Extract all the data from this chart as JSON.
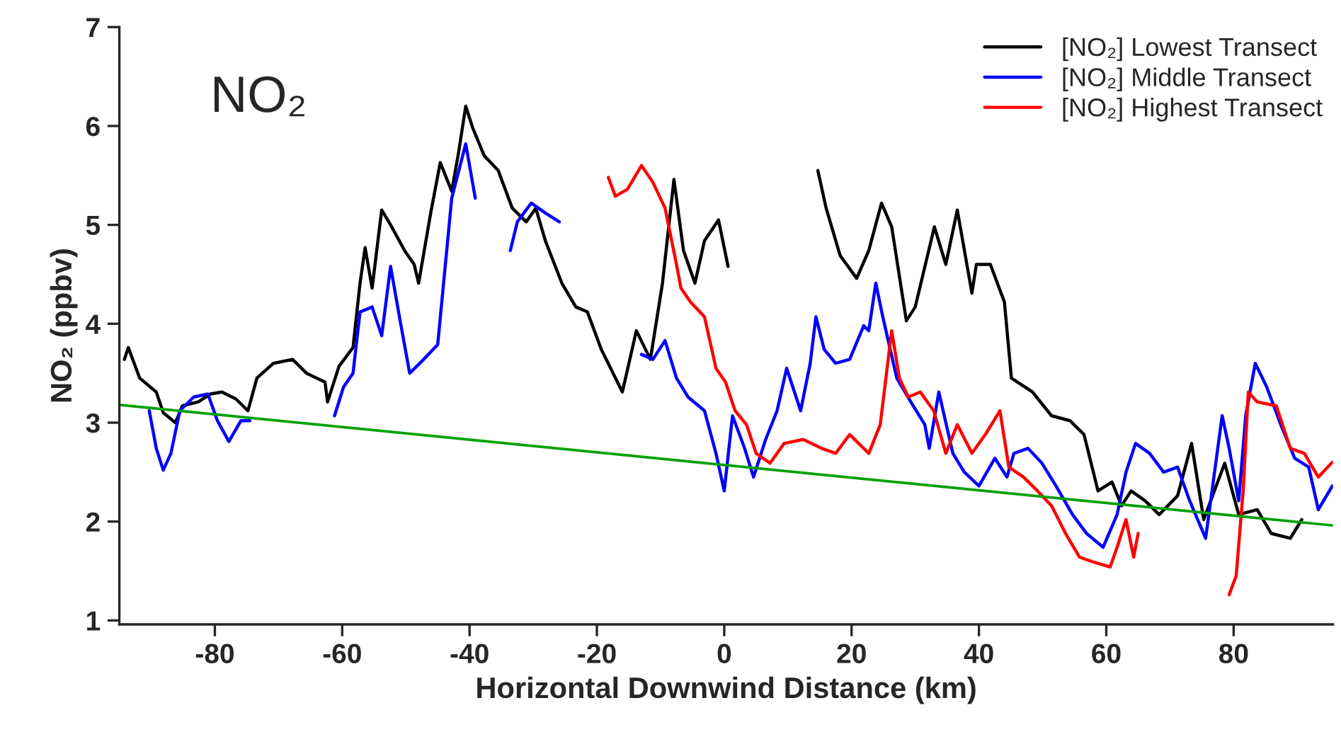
{
  "chart_data": {
    "type": "line",
    "title": "NO₂",
    "xlabel": "Horizontal Downwind Distance (km)",
    "ylabel": "NO₂ (ppbv)",
    "xlim": [
      -95,
      95.6
    ],
    "ylim": [
      0.96,
      7
    ],
    "xticks": [
      -80,
      -60,
      -40,
      -20,
      0,
      20,
      40,
      60,
      80
    ],
    "yticks": [
      1,
      2,
      3,
      4,
      5,
      6,
      7
    ],
    "grid": false,
    "legend": "top right",
    "marker": "none",
    "line_style": "solid",
    "series": [
      {
        "name": "[NO₂] Lowest Transect",
        "color": "#000000",
        "x": [
          -94.2,
          -93.6,
          -91.8,
          -89.2,
          -88.1,
          -86.2,
          -85.1,
          -82.6,
          -80.7,
          -78.9,
          -76.7,
          -74.8,
          -73.4,
          -70.8,
          -67.8,
          -65.6,
          -62.7,
          -62.3,
          -60.5,
          -58.3,
          -57.2,
          -56.4,
          -55.3,
          -53.8,
          -52.4,
          -50.2,
          -48.7,
          -48.0,
          -46.1,
          -44.6,
          -42.8,
          -41.7,
          -40.6,
          -39.5,
          -37.7,
          -35.5,
          -33.3,
          -31.1,
          -29.6,
          -28.1,
          -25.5,
          -23.3,
          -21.5,
          -19.3,
          -16.0,
          -13.8,
          -11.6,
          -9.7,
          -7.9,
          -6.4,
          -4.6,
          -3.1,
          -0.9,
          0.6,
          7,
          14.7,
          16.0,
          18.2,
          20.8,
          22.7,
          24.7,
          26.3,
          28.6,
          30.0,
          33.0,
          34.8,
          36.6,
          38.9,
          39.6,
          41.8,
          44.0,
          45.1,
          48.4,
          51.4,
          54.3,
          56.5,
          58.7,
          60.9,
          62.4,
          63.9,
          66.1,
          68.3,
          71.2,
          73.4,
          75.3,
          78.6,
          80.8,
          83.7,
          85.9,
          88.9,
          90.7
        ],
        "values": [
          3.64,
          3.76,
          3.45,
          3.31,
          3.1,
          3.0,
          3.17,
          3.21,
          3.29,
          3.31,
          3.24,
          3.12,
          3.45,
          3.6,
          3.64,
          3.5,
          3.41,
          3.21,
          3.57,
          3.76,
          4.41,
          4.77,
          4.36,
          5.15,
          5.0,
          4.74,
          4.6,
          4.41,
          5.12,
          5.63,
          5.34,
          5.74,
          6.2,
          5.98,
          5.7,
          5.55,
          5.17,
          5.03,
          5.17,
          4.84,
          4.41,
          4.17,
          4.12,
          3.74,
          3.31,
          3.93,
          3.64,
          4.41,
          5.46,
          4.74,
          4.41,
          4.84,
          5.05,
          4.58,
          null,
          5.55,
          5.17,
          4.69,
          4.46,
          4.74,
          5.22,
          4.98,
          4.03,
          4.17,
          4.98,
          4.6,
          5.15,
          4.31,
          4.6,
          4.6,
          4.22,
          3.45,
          3.31,
          3.07,
          3.02,
          2.88,
          2.31,
          2.4,
          2.16,
          2.31,
          2.21,
          2.07,
          2.26,
          2.79,
          2.02,
          2.59,
          2.07,
          2.12,
          1.88,
          1.83,
          2.02
        ]
      },
      {
        "name": "[NO₂] Middle Transect",
        "color": "#0000ff",
        "x": [
          -90.3,
          -89.2,
          -88.1,
          -86.9,
          -85.5,
          -83.3,
          -81.1,
          -79.6,
          -77.8,
          -75.9,
          -74.5,
          -68,
          -61.2,
          -59.8,
          -58.3,
          -57.2,
          -55.3,
          -53.8,
          -52.4,
          -50.9,
          -49.4,
          -47.2,
          -45.0,
          -42.8,
          -40.6,
          -39.1,
          -36,
          -33.6,
          -32.5,
          -30.3,
          -28.1,
          -25.9,
          -20,
          -13.0,
          -11.2,
          -9.3,
          -7.5,
          -5.7,
          -3.1,
          -1.3,
          0,
          1.3,
          3.2,
          4.6,
          6.5,
          8.3,
          9.8,
          12.0,
          13.5,
          14.4,
          15.7,
          17.5,
          19.7,
          21.9,
          22.7,
          23.8,
          24.9,
          27.1,
          29.3,
          31.5,
          32.2,
          33.7,
          35.9,
          37.7,
          40.0,
          42.5,
          44.4,
          45.5,
          47.7,
          49.9,
          52.1,
          54.7,
          56.9,
          59.5,
          61.7,
          63.1,
          64.6,
          66.8,
          69.0,
          71.2,
          73.1,
          75.6,
          78.2,
          79.3,
          80.8,
          81.9,
          83.4,
          85.2,
          87.4,
          89.6,
          91.8,
          93.3,
          95.5
        ],
        "values": [
          3.12,
          2.74,
          2.52,
          2.69,
          3.12,
          3.26,
          3.29,
          3.02,
          2.81,
          3.02,
          3.02,
          null,
          3.07,
          3.36,
          3.5,
          4.12,
          4.17,
          3.88,
          4.58,
          4.03,
          3.5,
          3.64,
          3.79,
          5.27,
          5.82,
          5.27,
          null,
          4.74,
          5.03,
          5.22,
          5.12,
          5.03,
          null,
          3.69,
          3.64,
          3.83,
          3.45,
          3.26,
          3.12,
          2.69,
          2.31,
          3.07,
          2.74,
          2.45,
          2.83,
          3.12,
          3.55,
          3.12,
          3.6,
          4.07,
          3.74,
          3.6,
          3.64,
          3.98,
          3.93,
          4.41,
          4.07,
          3.45,
          3.21,
          2.98,
          2.74,
          3.31,
          2.69,
          2.5,
          2.36,
          2.64,
          2.45,
          2.69,
          2.74,
          2.59,
          2.36,
          2.07,
          1.88,
          1.74,
          2.07,
          2.5,
          2.79,
          2.69,
          2.5,
          2.55,
          2.21,
          1.83,
          3.07,
          2.74,
          2.21,
          3.07,
          3.6,
          3.36,
          2.98,
          2.64,
          2.55,
          2.12,
          2.36
        ]
      },
      {
        "name": "[NO₂] Highest Transect",
        "color": "#ff0000",
        "x": [
          -18.2,
          -17.1,
          -15.2,
          -13.0,
          -11.2,
          -9.3,
          -7.5,
          -6.8,
          -5.3,
          -3.1,
          -1.3,
          0.2,
          1.7,
          3.5,
          5.0,
          7.2,
          9.4,
          12.4,
          15.3,
          17.5,
          19.7,
          22.7,
          24.5,
          26.3,
          27.5,
          28.9,
          30.8,
          32.9,
          34.8,
          36.6,
          38.9,
          41.0,
          43.3,
          44.7,
          47.0,
          49.2,
          51.4,
          53.6,
          55.8,
          58.0,
          60.6,
          61.7,
          63.1,
          64.3,
          65.0,
          72,
          79.3,
          80.4,
          81.5,
          82.3,
          83.7,
          86.7,
          88.9,
          91.1,
          93.3,
          95.5
        ],
        "values": [
          5.48,
          5.29,
          5.36,
          5.6,
          5.43,
          5.17,
          4.6,
          4.36,
          4.22,
          4.07,
          3.55,
          3.41,
          3.12,
          2.98,
          2.69,
          2.59,
          2.79,
          2.83,
          2.74,
          2.69,
          2.88,
          2.69,
          2.98,
          3.93,
          3.45,
          3.26,
          3.31,
          3.12,
          2.69,
          2.98,
          2.69,
          2.88,
          3.12,
          2.55,
          2.45,
          2.31,
          2.16,
          1.88,
          1.64,
          1.59,
          1.54,
          1.74,
          2.02,
          1.64,
          1.88,
          null,
          1.26,
          1.45,
          2.31,
          3.31,
          3.21,
          3.17,
          2.74,
          2.69,
          2.45,
          2.6
        ]
      },
      {
        "type": "line",
        "color": "#00a000",
        "x": [
          -95,
          95.6
        ],
        "values": [
          3.18,
          1.96
        ]
      }
    ]
  }
}
